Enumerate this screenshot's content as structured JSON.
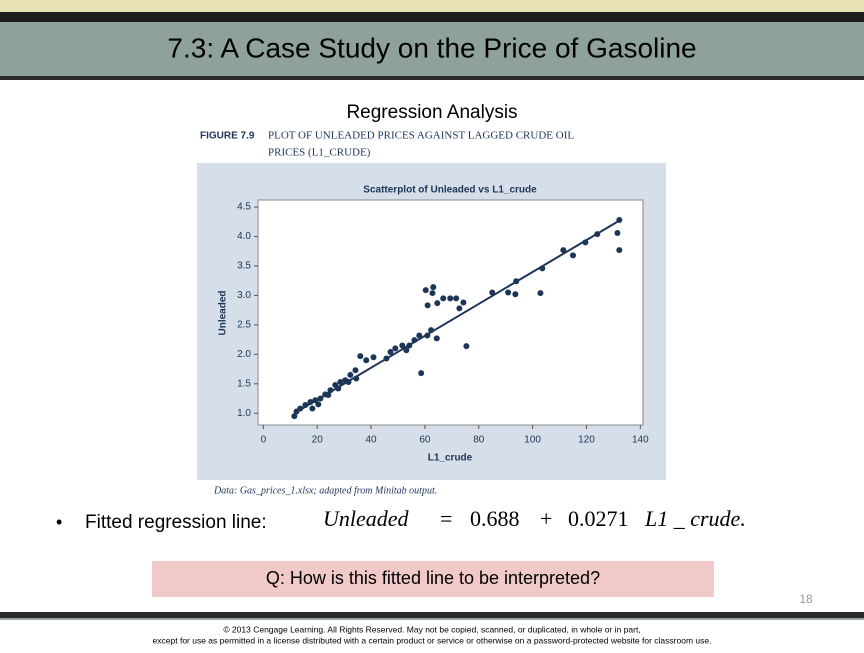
{
  "slide": {
    "title": "7.3: A Case Study on the Price of Gasoline",
    "subtitle": "Regression Analysis",
    "figure_label": "FIGURE 7.9",
    "figure_caption_1": "PLOT OF UNLEADED PRICES AGAINST LAGGED CRUDE OIL",
    "figure_caption_2": "PRICES (L1_CRUDE)",
    "source": "Data: Gas_prices_1.xlsx; adapted from Minitab output.",
    "bullet": "Fitted regression line:",
    "question": "Q: How is this fitted line to be interpreted?",
    "page_number": "18",
    "footer_1": "© 2013 Cengage Learning. All Rights Reserved. May not be copied, scanned, or duplicated, in whole or in part,",
    "footer_2": "except for use as permitted in a license distributed with a certain product or service or otherwise on a password-protected website for classroom use."
  },
  "equation": {
    "lhs": "Unleaded",
    "equals": "=",
    "intercept": 0.688,
    "plus": "+",
    "slope": 0.0271,
    "variable": "L1 _ crude."
  },
  "chart_data": {
    "type": "scatter",
    "title": "Scatterplot of Unleaded vs L1_crude",
    "xlabel": "L1_crude",
    "ylabel": "Unleaded",
    "color": "#1d3557",
    "x": [
      131.5,
      132.2,
      132.2,
      124,
      119.6,
      115,
      111.4,
      103.6,
      102.9,
      93.9,
      93.6,
      90.9,
      85,
      75.4,
      74.3,
      72.8,
      71.6,
      69.4,
      66.8,
      64.6,
      63.1,
      62.8,
      61.0,
      60.3,
      62.3,
      64.4,
      60.9,
      57.9,
      56.1,
      54.2,
      53.1,
      58.6,
      51.6,
      49.0,
      47.2,
      45.7,
      40.9,
      38.2,
      36,
      34.2,
      32.3,
      30.4,
      28.6,
      26.7,
      24.9,
      23.0,
      21.2,
      19.3,
      17.5,
      15.6,
      13.7,
      12.3,
      11.5,
      18.2,
      20.4,
      24.1,
      27.8,
      31.6,
      34.5
    ],
    "values": [
      4.06,
      3.77,
      4.28,
      4.04,
      3.9,
      3.68,
      3.77,
      3.46,
      3.04,
      3.24,
      3.02,
      3.05,
      3.05,
      2.14,
      2.88,
      2.78,
      2.95,
      2.95,
      2.95,
      2.87,
      3.14,
      3.04,
      2.83,
      3.09,
      2.41,
      2.27,
      2.32,
      2.32,
      2.24,
      2.15,
      2.07,
      1.68,
      2.15,
      2.1,
      2.04,
      1.93,
      1.95,
      1.9,
      1.97,
      1.73,
      1.65,
      1.56,
      1.53,
      1.48,
      1.39,
      1.32,
      1.25,
      1.22,
      1.19,
      1.14,
      1.08,
      1.03,
      0.95,
      1.08,
      1.15,
      1.31,
      1.42,
      1.53,
      1.59
    ],
    "xlim": [
      -2,
      141
    ],
    "ylim": [
      0.8,
      4.62
    ],
    "xticks": [
      0,
      20,
      40,
      60,
      80,
      100,
      120,
      140
    ],
    "yticks": [
      {
        "value": 1,
        "label": "1.0"
      },
      1.5,
      {
        "value": 2,
        "label": "2.0"
      },
      2.5,
      {
        "value": 3,
        "label": "3.0"
      },
      3.5,
      {
        "value": 4,
        "label": "4.0"
      },
      4.5
    ]
  }
}
